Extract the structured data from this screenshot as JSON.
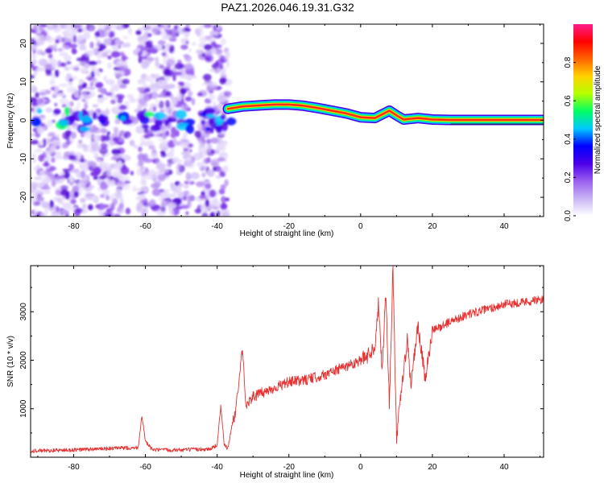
{
  "figure": {
    "title": "PAZ1.2026.046.19.31.G32"
  },
  "chart_data": [
    {
      "type": "heatmap",
      "name": "spectrogram",
      "xlabel": "Height of straight line (km)",
      "ylabel": "Frequency (Hz)",
      "xlim": [
        -92,
        51
      ],
      "ylim": [
        -25,
        25
      ],
      "xticks": [
        -80,
        -60,
        -40,
        -20,
        0,
        20,
        40
      ],
      "yticks": [
        20,
        10,
        0,
        -10,
        -20
      ],
      "xtick_labels": [
        "-80",
        "-60",
        "-40",
        "-20",
        "0",
        "20",
        "40"
      ],
      "ytick_labels": [
        "20",
        "10",
        "0",
        "-10",
        "-20"
      ],
      "noise_region": [
        -92,
        -37
      ],
      "noise_gaps": [
        [
          -65,
          -62
        ],
        [
          -47,
          -45
        ]
      ],
      "signal_track": {
        "x": [
          -37,
          -33,
          -28,
          -24,
          -20,
          -16,
          -12,
          -8,
          -4,
          0,
          4,
          8,
          10,
          12,
          16,
          20,
          25,
          30,
          40,
          51
        ],
        "y": [
          3,
          3.6,
          3.9,
          4.1,
          4.1,
          3.8,
          3.2,
          2.5,
          1.8,
          0.8,
          0.6,
          2.5,
          1.3,
          0.2,
          0.6,
          0.2,
          0.1,
          0.1,
          0.1,
          0.1
        ]
      },
      "colorbar": {
        "label": "Normalized spectral amplitude",
        "ticks": [
          0.0,
          0.2,
          0.4,
          0.6,
          0.8
        ],
        "tick_labels": [
          "0.0",
          "0.2",
          "0.4",
          "0.6",
          "0.8"
        ],
        "range": [
          0,
          1
        ],
        "colors": [
          "#ffffff",
          "#c8b4f5",
          "#9a5ef0",
          "#4b00e8",
          "#0000ff",
          "#00c8ff",
          "#00ff64",
          "#b4ff00",
          "#ffd200",
          "#ff6400",
          "#ff0000",
          "#ff1e8c"
        ]
      }
    },
    {
      "type": "line",
      "name": "snr",
      "xlabel": "Height of straight line (km)",
      "ylabel": "SNR (10 * v/v)",
      "xlim": [
        -92,
        51
      ],
      "ylim": [
        0,
        3950
      ],
      "xticks": [
        -80,
        -60,
        -40,
        -20,
        0,
        20,
        40
      ],
      "yticks": [
        1000,
        2000,
        3000
      ],
      "xtick_labels": [
        "-80",
        "-60",
        "-40",
        "-20",
        "0",
        "20",
        "40"
      ],
      "ytick_labels": [
        "1000",
        "2000",
        "3000"
      ],
      "color": "#e83030",
      "series": [
        {
          "name": "SNR",
          "x": [
            -92,
            -80,
            -70,
            -62,
            -61,
            -60,
            -58,
            -50,
            -42,
            -40,
            -39,
            -38,
            -37,
            -36,
            -35,
            -34,
            -33,
            -32,
            -31,
            -30,
            -25,
            -20,
            -15,
            -10,
            -5,
            0,
            2,
            4,
            5,
            6,
            7,
            8,
            9,
            10,
            12,
            13,
            14,
            16,
            18,
            20,
            25,
            30,
            35,
            40,
            45,
            51
          ],
          "y": [
            130,
            150,
            180,
            200,
            870,
            320,
            150,
            150,
            170,
            250,
            1050,
            250,
            180,
            600,
            900,
            1500,
            2250,
            1100,
            1150,
            1250,
            1400,
            1550,
            1600,
            1700,
            1850,
            2000,
            2100,
            2300,
            3200,
            1800,
            3400,
            1100,
            3900,
            400,
            1800,
            2400,
            1500,
            2700,
            1600,
            2600,
            2800,
            2950,
            3050,
            3150,
            3200,
            3250
          ]
        }
      ]
    }
  ]
}
